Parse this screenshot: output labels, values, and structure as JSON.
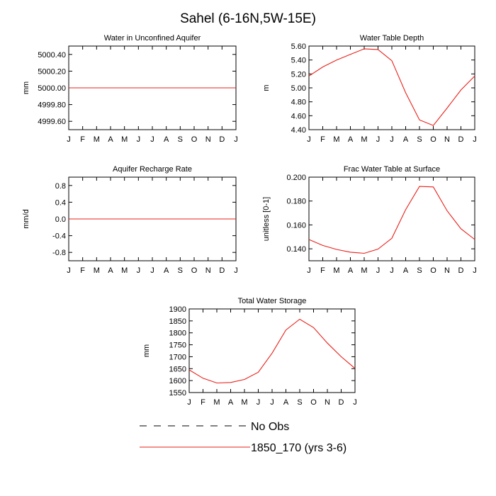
{
  "figure": {
    "title": "Sahel (6-16N,5W-15E)"
  },
  "months": [
    "J",
    "F",
    "M",
    "A",
    "M",
    "J",
    "J",
    "A",
    "S",
    "O",
    "N",
    "D",
    "J"
  ],
  "legend": {
    "items": [
      {
        "label": "No Obs",
        "style": "dashed",
        "color": "#000000"
      },
      {
        "label": "1850_170 (yrs 3-6)",
        "style": "solid",
        "color": "#e8201a"
      }
    ]
  },
  "chart_data": [
    {
      "type": "line",
      "title": "Water in Unconfined Aquifer",
      "ylabel": "mm",
      "ylim": [
        4999.5,
        5000.5
      ],
      "yticks": [
        4999.6,
        4999.8,
        5000.0,
        5000.2,
        5000.4
      ],
      "ytick_labels": [
        "4999.60",
        "4999.80",
        "5000.00",
        "5000.20",
        "5000.40"
      ],
      "x": [
        "J",
        "F",
        "M",
        "A",
        "M",
        "J",
        "J",
        "A",
        "S",
        "O",
        "N",
        "D",
        "J"
      ],
      "series": [
        {
          "name": "1850_170 (yrs 3-6)",
          "color": "#e8201a",
          "values": [
            5000.0,
            5000.0,
            5000.0,
            5000.0,
            5000.0,
            5000.0,
            5000.0,
            5000.0,
            5000.0,
            5000.0,
            5000.0,
            5000.0,
            5000.0
          ]
        }
      ]
    },
    {
      "type": "line",
      "title": "Water Table Depth",
      "ylabel": "m",
      "ylim": [
        4.4,
        5.6
      ],
      "yticks": [
        4.4,
        4.6,
        4.8,
        5.0,
        5.2,
        5.4,
        5.6
      ],
      "ytick_labels": [
        "4.40",
        "4.60",
        "4.80",
        "5.00",
        "5.20",
        "5.40",
        "5.60"
      ],
      "x": [
        "J",
        "F",
        "M",
        "A",
        "M",
        "J",
        "J",
        "A",
        "S",
        "O",
        "N",
        "D",
        "J"
      ],
      "series": [
        {
          "name": "1850_170 (yrs 3-6)",
          "color": "#e8201a",
          "values": [
            5.17,
            5.3,
            5.4,
            5.48,
            5.56,
            5.55,
            5.39,
            4.93,
            4.54,
            4.46,
            4.71,
            4.97,
            5.17
          ]
        }
      ]
    },
    {
      "type": "line",
      "title": "Aquifer Recharge Rate",
      "ylabel": "mm/d",
      "ylim": [
        -1.0,
        1.0
      ],
      "yticks": [
        -0.8,
        -0.4,
        0.0,
        0.4,
        0.8
      ],
      "ytick_labels": [
        "-0.8",
        "-0.4",
        "0.0",
        "0.4",
        "0.8"
      ],
      "x": [
        "J",
        "F",
        "M",
        "A",
        "M",
        "J",
        "J",
        "A",
        "S",
        "O",
        "N",
        "D",
        "J"
      ],
      "series": [
        {
          "name": "1850_170 (yrs 3-6)",
          "color": "#e8201a",
          "values": [
            0,
            0,
            0,
            0,
            0,
            0,
            0,
            0,
            0,
            0,
            0,
            0,
            0
          ]
        }
      ]
    },
    {
      "type": "line",
      "title": "Frac Water Table at Surface",
      "ylabel": "unitless [0-1]",
      "ylim": [
        0.13,
        0.2
      ],
      "yticks": [
        0.14,
        0.16,
        0.18,
        0.2
      ],
      "ytick_labels": [
        "0.140",
        "0.160",
        "0.180",
        "0.200"
      ],
      "x": [
        "J",
        "F",
        "M",
        "A",
        "M",
        "J",
        "J",
        "A",
        "S",
        "O",
        "N",
        "D",
        "J"
      ],
      "series": [
        {
          "name": "1850_170 (yrs 3-6)",
          "color": "#e8201a",
          "values": [
            0.1478,
            0.1428,
            0.1395,
            0.1372,
            0.1362,
            0.1398,
            0.1488,
            0.1728,
            0.1922,
            0.1918,
            0.1718,
            0.1568,
            0.1478
          ]
        }
      ]
    },
    {
      "type": "line",
      "title": "Total Water Storage",
      "ylabel": "mm",
      "ylim": [
        1550,
        1900
      ],
      "yticks": [
        1550,
        1600,
        1650,
        1700,
        1750,
        1800,
        1850,
        1900
      ],
      "ytick_labels": [
        "1550",
        "1600",
        "1650",
        "1700",
        "1750",
        "1800",
        "1850",
        "1900"
      ],
      "x": [
        "J",
        "F",
        "M",
        "A",
        "M",
        "J",
        "J",
        "A",
        "S",
        "O",
        "N",
        "D",
        "J"
      ],
      "series": [
        {
          "name": "1850_170 (yrs 3-6)",
          "color": "#e8201a",
          "values": [
            1645,
            1610,
            1590,
            1592,
            1605,
            1635,
            1715,
            1812,
            1857,
            1822,
            1757,
            1700,
            1651
          ]
        }
      ]
    }
  ]
}
